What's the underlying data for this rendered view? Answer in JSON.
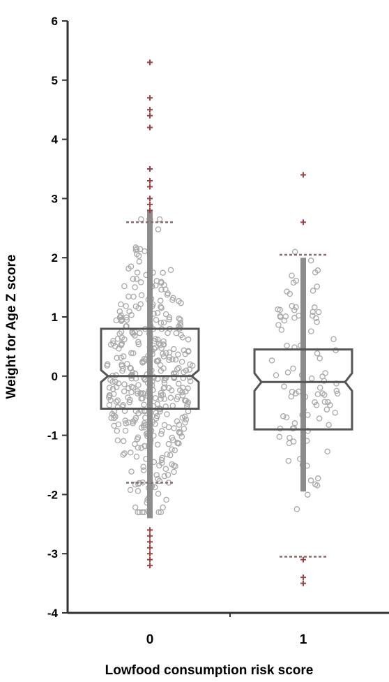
{
  "chart_data": {
    "type": "boxplot",
    "xlabel": "Lowfood consumption risk score",
    "ylabel": "Weight for Age Z score",
    "ylim": [
      -4,
      6
    ],
    "yticks": [
      -4,
      -3,
      -2,
      -1,
      0,
      1,
      2,
      3,
      4,
      5,
      6
    ],
    "categories": [
      "0",
      "1"
    ],
    "notched": true,
    "jittered_points": true,
    "colors": {
      "box": "#555555",
      "points": "#a8a8a8",
      "outliers": "#a04040",
      "axis": "#333333"
    },
    "boxes": [
      {
        "category": "0",
        "q1": -0.55,
        "median": 0.0,
        "q3": 0.8,
        "notch_low": -0.1,
        "notch_high": 0.1,
        "whisker_low": -1.8,
        "whisker_high": 2.6,
        "line_low": -2.4,
        "line_high": 2.8,
        "point_count": 420,
        "outliers": [
          5.3,
          4.7,
          4.5,
          4.4,
          4.2,
          3.5,
          3.3,
          3.2,
          3.0,
          2.9,
          2.8,
          -2.6,
          -2.7,
          -2.8,
          -2.9,
          -3.0,
          -3.1,
          -3.2
        ]
      },
      {
        "category": "1",
        "q1": -0.9,
        "median": -0.1,
        "q3": 0.45,
        "notch_low": -0.25,
        "notch_high": 0.05,
        "whisker_low": -3.05,
        "whisker_high": 2.05,
        "line_low": -1.95,
        "line_high": 2.0,
        "point_count": 95,
        "outliers": [
          3.4,
          2.6,
          -3.1,
          -3.4,
          -3.5
        ]
      }
    ]
  }
}
